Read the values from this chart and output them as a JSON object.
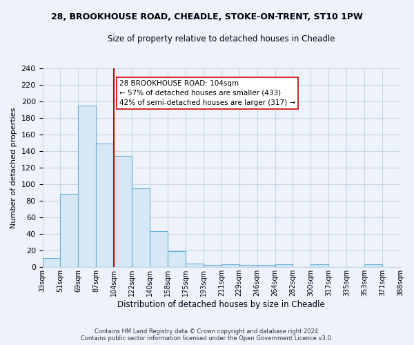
{
  "title": "28, BROOKHOUSE ROAD, CHEADLE, STOKE-ON-TRENT, ST10 1PW",
  "subtitle": "Size of property relative to detached houses in Cheadle",
  "xlabel": "Distribution of detached houses by size in Cheadle",
  "ylabel": "Number of detached properties",
  "bin_labels": [
    "33sqm",
    "51sqm",
    "69sqm",
    "87sqm",
    "104sqm",
    "122sqm",
    "140sqm",
    "158sqm",
    "175sqm",
    "193sqm",
    "211sqm",
    "229sqm",
    "246sqm",
    "264sqm",
    "282sqm",
    "300sqm",
    "317sqm",
    "335sqm",
    "353sqm",
    "371sqm",
    "388sqm"
  ],
  "bar_values": [
    11,
    88,
    195,
    149,
    134,
    95,
    43,
    19,
    4,
    2,
    3,
    2,
    2,
    3,
    0,
    3,
    0,
    0,
    3,
    0
  ],
  "bar_color": "#d6e8f5",
  "bar_edge_color": "#6baed6",
  "vline_x_idx": 4,
  "vline_color": "#cc0000",
  "annotation_text": "28 BROOKHOUSE ROAD: 104sqm\n← 57% of detached houses are smaller (433)\n42% of semi-detached houses are larger (317) →",
  "annotation_box_color": "#ffffff",
  "annotation_box_edge": "#cc0000",
  "footer_line1": "Contains HM Land Registry data © Crown copyright and database right 2024.",
  "footer_line2": "Contains public sector information licensed under the Open Government Licence v3.0.",
  "ylim": [
    0,
    240
  ],
  "yticks": [
    0,
    20,
    40,
    60,
    80,
    100,
    120,
    140,
    160,
    180,
    200,
    220,
    240
  ],
  "background_color": "#eef3fb",
  "grid_color": "#c8d4e8"
}
